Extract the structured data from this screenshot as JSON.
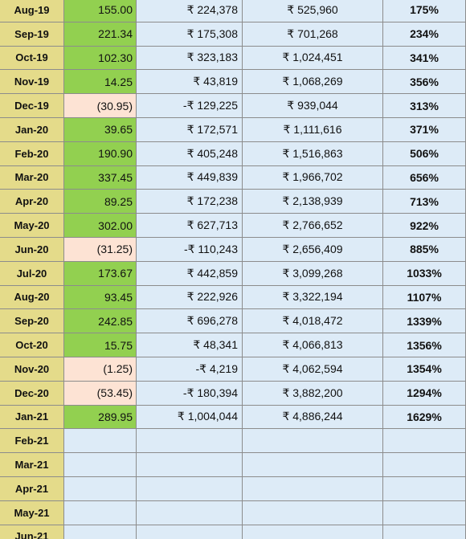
{
  "table": {
    "rows": [
      [
        "Aug-19",
        "155.00",
        "₹ 224,378",
        "₹ 525,960",
        "175%"
      ],
      [
        "Sep-19",
        "221.34",
        "₹ 175,308",
        "₹ 701,268",
        "234%"
      ],
      [
        "Oct-19",
        "102.30",
        "₹ 323,183",
        "₹ 1,024,451",
        "341%"
      ],
      [
        "Nov-19",
        "14.25",
        "₹ 43,819",
        "₹ 1,068,269",
        "356%"
      ],
      [
        "Dec-19",
        "(30.95)",
        "-₹ 129,225",
        "₹ 939,044",
        "313%"
      ],
      [
        "Jan-20",
        "39.65",
        "₹ 172,571",
        "₹ 1,111,616",
        "371%"
      ],
      [
        "Feb-20",
        "190.90",
        "₹ 405,248",
        "₹ 1,516,863",
        "506%"
      ],
      [
        "Mar-20",
        "337.45",
        "₹ 449,839",
        "₹ 1,966,702",
        "656%"
      ],
      [
        "Apr-20",
        "89.25",
        "₹ 172,238",
        "₹ 2,138,939",
        "713%"
      ],
      [
        "May-20",
        "302.00",
        "₹ 627,713",
        "₹ 2,766,652",
        "922%"
      ],
      [
        "Jun-20",
        "(31.25)",
        "-₹ 110,243",
        "₹ 2,656,409",
        "885%"
      ],
      [
        "Jul-20",
        "173.67",
        "₹ 442,859",
        "₹ 3,099,268",
        "1033%"
      ],
      [
        "Aug-20",
        "93.45",
        "₹ 222,926",
        "₹ 3,322,194",
        "1107%"
      ],
      [
        "Sep-20",
        "242.85",
        "₹ 696,278",
        "₹ 4,018,472",
        "1339%"
      ],
      [
        "Oct-20",
        "15.75",
        "₹ 48,341",
        "₹ 4,066,813",
        "1356%"
      ],
      [
        "Nov-20",
        "(1.25)",
        "-₹ 4,219",
        "₹ 4,062,594",
        "1354%"
      ],
      [
        "Dec-20",
        "(53.45)",
        "-₹ 180,394",
        "₹ 3,882,200",
        "1294%"
      ],
      [
        "Jan-21",
        "289.95",
        "₹ 1,004,044",
        "₹ 4,886,244",
        "1629%"
      ],
      [
        "Feb-21"
      ],
      [
        "Mar-21"
      ],
      [
        "Apr-21"
      ],
      [
        "May-21"
      ],
      [
        "Jun-21"
      ]
    ]
  }
}
